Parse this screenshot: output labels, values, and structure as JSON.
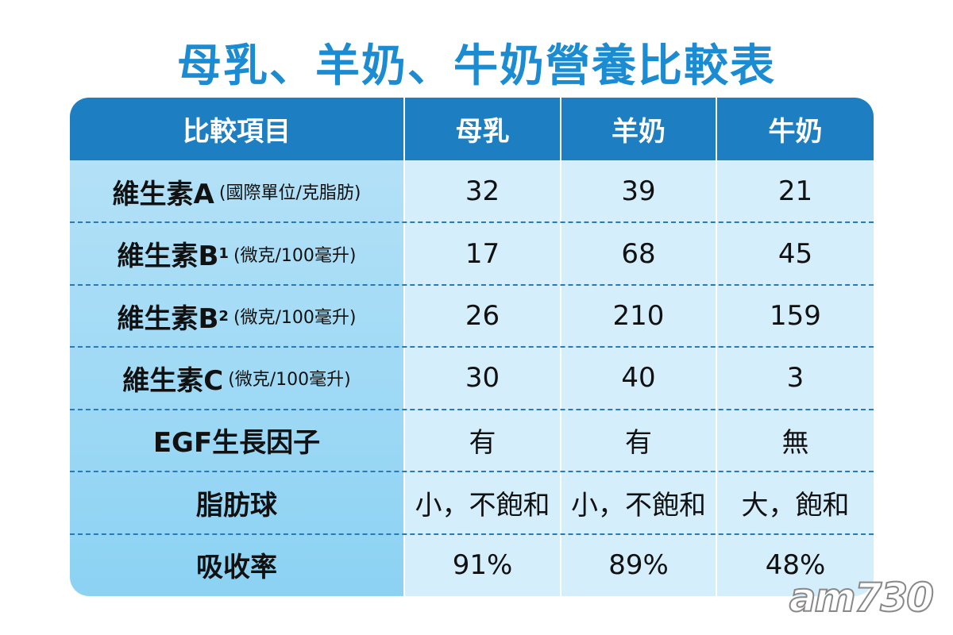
{
  "header": {
    "title": "母乳、羊奶、牛奶營養比較表"
  },
  "table": {
    "columns": [
      "比較項目",
      "母乳",
      "羊奶",
      "牛奶"
    ],
    "rows": [
      {
        "label": "維生素A",
        "unit": "(國際單位/克脂肪)",
        "values": [
          32,
          39,
          21
        ]
      },
      {
        "label": "維生素B",
        "sub": "1",
        "unit": "(微克/100毫升)",
        "values": [
          17,
          68,
          45
        ]
      },
      {
        "label": "維生素B",
        "sub": "2",
        "unit": "(微克/100毫升)",
        "values": [
          26,
          210,
          159
        ]
      },
      {
        "label": "維生素C",
        "unit": "(微克/100毫升)",
        "values": [
          30,
          40,
          3
        ]
      },
      {
        "label": "EGF生長因子",
        "values": [
          "有",
          "有",
          "無"
        ]
      },
      {
        "label": "脂肪球",
        "values": [
          "小，不飽和",
          "小，不飽和",
          "大，飽和"
        ]
      },
      {
        "label": "吸收率",
        "values": [
          "91%",
          "89%",
          "48%"
        ]
      }
    ]
  },
  "watermark": "am730"
}
